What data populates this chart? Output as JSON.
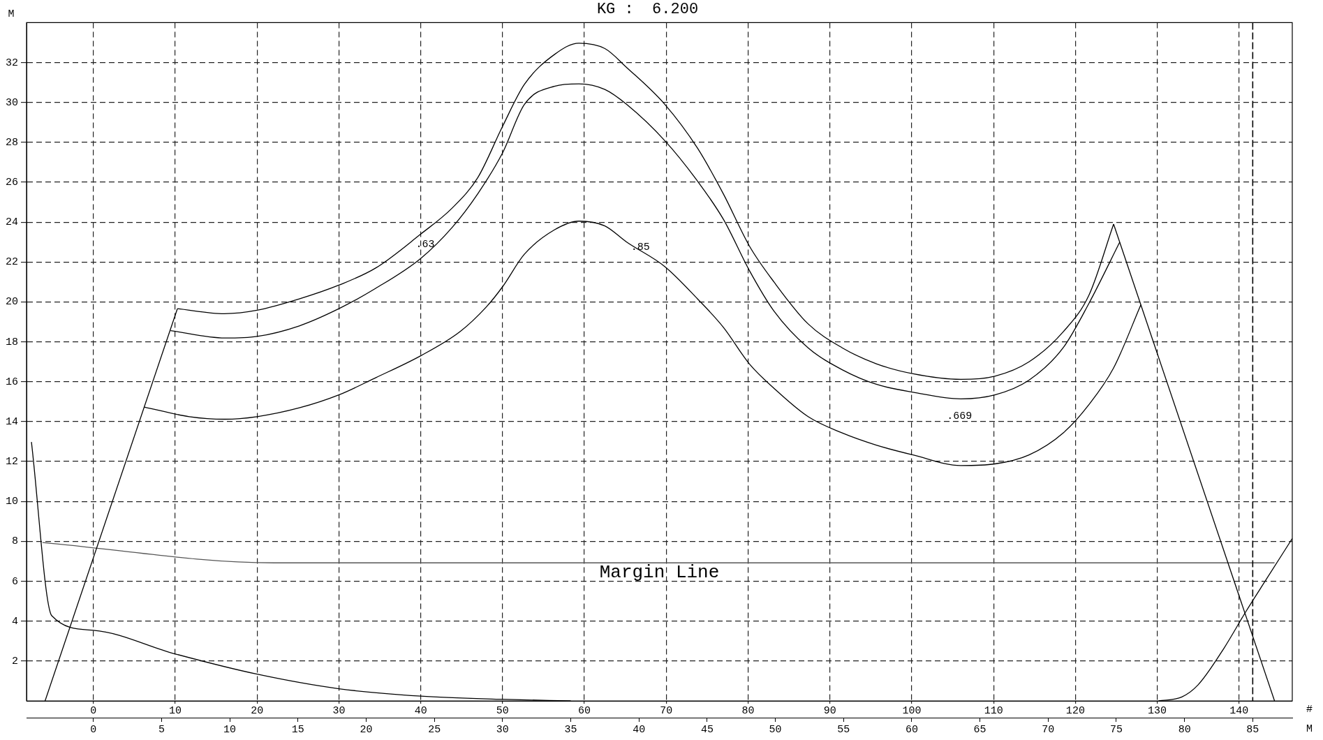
{
  "chart_data": {
    "type": "line",
    "title": "KG :  6.200",
    "xlabel": "M",
    "x2label": "#",
    "ylabel": "M",
    "xlim": [
      -4.9,
      87.9
    ],
    "xticks": [
      0,
      5,
      10,
      15,
      20,
      25,
      30,
      35,
      40,
      45,
      50,
      55,
      60,
      65,
      70,
      75,
      80,
      85
    ],
    "x2lim": [
      -8.17,
      146.5
    ],
    "x2ticks": [
      0,
      10,
      20,
      30,
      40,
      50,
      60,
      70,
      80,
      90,
      100,
      110,
      120,
      130,
      140
    ],
    "ylim": [
      0,
      34
    ],
    "yticks": [
      2,
      4,
      6,
      8,
      10,
      12,
      14,
      16,
      18,
      20,
      22,
      24,
      26,
      28,
      30,
      32
    ],
    "grid": true,
    "ref_lines": [
      {
        "axis": "x",
        "value": 85,
        "line_style": "dashed"
      }
    ],
    "annotations": [
      ".63",
      ".85",
      ".669",
      "Margin Line"
    ],
    "series": [
      {
        "color": "#000000",
        "x": [
          -3.54,
          6.16
        ],
        "values": [
          0,
          19.66
        ]
      },
      {
        "color": "#000000",
        "x": [
          74.8,
          86.6
        ],
        "values": [
          23.9,
          0
        ]
      },
      {
        "color": "#000000",
        "x": [
          6.16,
          9.6,
          12.0,
          15.1,
          18.0,
          20.7,
          24.0,
          26.3,
          28.2,
          30.0,
          31.6,
          33.8,
          35.6,
          37.5,
          39.1,
          41.9,
          44.3,
          46.2,
          48.1,
          49.9,
          52.4,
          54.9,
          57.4,
          60.1,
          63.6,
          66.1,
          68.6,
          71.1,
          73.0,
          74.8
        ],
        "values": [
          19.66,
          19.41,
          19.58,
          20.15,
          20.84,
          21.7,
          23.4,
          24.7,
          26.25,
          28.8,
          30.9,
          32.4,
          32.97,
          32.7,
          31.75,
          29.9,
          27.7,
          25.4,
          22.8,
          21.0,
          18.9,
          17.7,
          16.9,
          16.4,
          16.12,
          16.28,
          17.0,
          18.5,
          20.35,
          23.9
        ]
      },
      {
        "color": "#000000",
        "x": [
          5.66,
          9.64,
          12.0,
          15.1,
          18.0,
          20.7,
          24.0,
          26.3,
          28.2,
          30.0,
          31.6,
          33.8,
          35.6,
          37.5,
          39.1,
          41.9,
          44.3,
          46.2,
          48.1,
          49.9,
          52.4,
          54.9,
          57.4,
          60.1,
          63.6,
          66.1,
          68.6,
          71.1,
          73.0,
          75.25
        ],
        "values": [
          18.56,
          18.19,
          18.27,
          18.8,
          19.66,
          20.68,
          22.18,
          23.73,
          25.44,
          27.47,
          29.9,
          30.81,
          30.93,
          30.65,
          29.9,
          28.08,
          26.05,
          24.13,
          21.57,
          19.54,
          17.7,
          16.6,
          15.87,
          15.47,
          15.14,
          15.34,
          16.08,
          17.7,
          19.94,
          23.0
        ]
      },
      {
        "color": "#000000",
        "x": [
          3.73,
          7.03,
          9.64,
          12.0,
          15.1,
          18.0,
          20.7,
          24.0,
          26.9,
          28.8,
          30.0,
          31.6,
          33.8,
          35.6,
          37.5,
          39.1,
          41.9,
          44.3,
          46.2,
          48.1,
          49.9,
          52.4,
          54.9,
          57.4,
          60.1,
          63.6,
          66.1,
          68.6,
          71.1,
          73.0,
          74.8,
          76.8
        ],
        "values": [
          14.73,
          14.25,
          14.12,
          14.25,
          14.69,
          15.34,
          16.2,
          17.3,
          18.52,
          19.74,
          20.76,
          22.39,
          23.61,
          24.05,
          23.81,
          23.0,
          21.77,
          20.15,
          18.72,
          16.89,
          15.67,
          14.25,
          13.43,
          12.82,
          12.33,
          11.8,
          11.88,
          12.33,
          13.43,
          14.86,
          16.69,
          19.86
        ]
      },
      {
        "color": "#555555",
        "x": [
          -3.73,
          13.25,
          86.6
        ],
        "values": [
          7.94,
          6.92,
          6.92
        ]
      },
      {
        "color": "#000000",
        "x": [
          -4.54,
          -3.05,
          0,
          5.97,
          12.0,
          18.0,
          24.0,
          30.0,
          35.0
        ],
        "values": [
          12.98,
          4.27,
          3.54,
          2.36,
          1.34,
          0.61,
          0.24,
          0.08,
          0
        ]
      },
      {
        "color": "#000000",
        "x": [
          78.1,
          79.8,
          81.0,
          82.9,
          84.5,
          86.0,
          87.9
        ],
        "values": [
          0,
          0.2,
          0.81,
          2.65,
          4.48,
          6.1,
          8.14
        ]
      }
    ]
  }
}
